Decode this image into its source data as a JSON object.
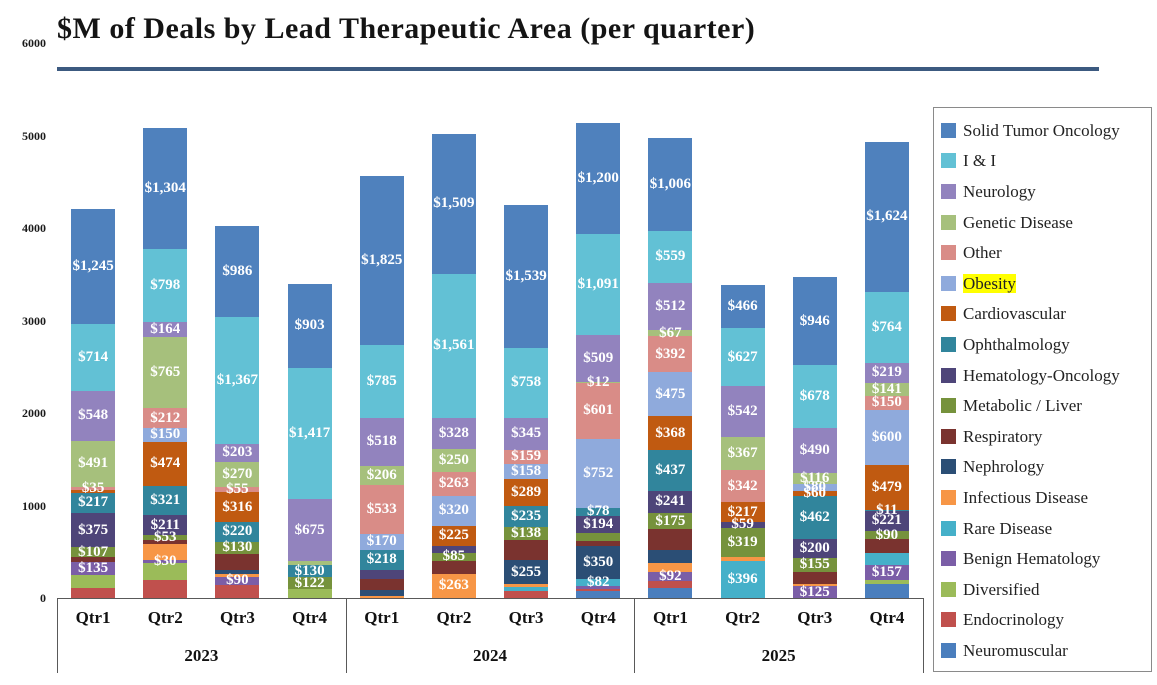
{
  "title": "$M of Deals by Lead Therapeutic Area (per quarter)",
  "accent_rule_color": "#3C5A80",
  "y_axis": {
    "ticks": [
      6000,
      5000,
      4000,
      3000,
      2000,
      1000,
      0
    ],
    "max": 6000
  },
  "x_axis": {
    "years": [
      "2023",
      "2024",
      "2025"
    ],
    "quarters": [
      "Qtr1",
      "Qtr2",
      "Qtr3",
      "Qtr4"
    ]
  },
  "legend": [
    {
      "key": "sto",
      "label": "Solid Tumor Oncology",
      "color": "#4F81BD",
      "highlighted": false
    },
    {
      "key": "ii",
      "label": "I & I",
      "color": "#62C1D5",
      "highlighted": false
    },
    {
      "key": "neuro",
      "label": "Neurology",
      "color": "#9283BE",
      "highlighted": false
    },
    {
      "key": "genetic",
      "label": "Genetic Disease",
      "color": "#A6C07C",
      "highlighted": false
    },
    {
      "key": "other",
      "label": "Other",
      "color": "#D98C87",
      "highlighted": false
    },
    {
      "key": "obesity",
      "label": "Obesity",
      "color": "#8FAADC",
      "highlighted": true,
      "highlight_color": "#FFFF00"
    },
    {
      "key": "cardio",
      "label": "Cardiovascular",
      "color": "#C05A11",
      "highlighted": false
    },
    {
      "key": "ophthal",
      "label": "Ophthalmology",
      "color": "#31859C",
      "highlighted": false
    },
    {
      "key": "hemonc",
      "label": "Hematology-Oncology",
      "color": "#4E4579",
      "highlighted": false
    },
    {
      "key": "metabolic",
      "label": "Metabolic / Liver",
      "color": "#76923C",
      "highlighted": false
    },
    {
      "key": "resp",
      "label": "Respiratory",
      "color": "#7A332F",
      "highlighted": false
    },
    {
      "key": "nephro",
      "label": "Nephrology",
      "color": "#2B4E75",
      "highlighted": false
    },
    {
      "key": "infect",
      "label": "Infectious Disease",
      "color": "#F79646",
      "highlighted": false
    },
    {
      "key": "rare",
      "label": "Rare Disease",
      "color": "#45B0C9",
      "highlighted": false
    },
    {
      "key": "benign",
      "label": "Benign Hematology",
      "color": "#7B5EA7",
      "highlighted": false
    },
    {
      "key": "divers",
      "label": "Diversified",
      "color": "#9BBB59",
      "highlighted": false
    },
    {
      "key": "endo",
      "label": "Endocrinology",
      "color": "#C0504D",
      "highlighted": false
    },
    {
      "key": "neuromusc",
      "label": "Neuromuscular",
      "color": "#4A7EBD",
      "highlighted": false
    }
  ],
  "chart_data": {
    "type": "bar",
    "stacked": true,
    "unit": "$M",
    "title": "$M of Deals by Lead Therapeutic Area (per quarter)",
    "ylim": [
      0,
      6000
    ],
    "grid": false,
    "legend_position": "right",
    "segments_order": "top-to-bottom",
    "bars": [
      {
        "year": "2023",
        "quarter": "Qtr1",
        "segments": [
          {
            "a": "sto",
            "v": 1245,
            "l": "$1,245"
          },
          {
            "a": "ii",
            "v": 714,
            "l": "$714"
          },
          {
            "a": "neuro",
            "v": 548,
            "l": "$548"
          },
          {
            "a": "genetic",
            "v": 491,
            "l": "$491"
          },
          {
            "a": "other",
            "v": 35,
            "l": "$35"
          },
          {
            "a": "cardio",
            "v": 30,
            "l": null
          },
          {
            "a": "ophthal",
            "v": 217,
            "l": "$217"
          },
          {
            "a": "hemonc",
            "v": 375,
            "l": "$375"
          },
          {
            "a": "metabolic",
            "v": 107,
            "l": "$107"
          },
          {
            "a": "resp",
            "v": 55,
            "l": null
          },
          {
            "a": "benign",
            "v": 135,
            "l": "$135"
          },
          {
            "a": "divers",
            "v": 140,
            "l": null
          },
          {
            "a": "endo",
            "v": 110,
            "l": null
          }
        ]
      },
      {
        "year": "2023",
        "quarter": "Qtr2",
        "segments": [
          {
            "a": "sto",
            "v": 1304,
            "l": "$1,304"
          },
          {
            "a": "ii",
            "v": 798,
            "l": "$798"
          },
          {
            "a": "neuro",
            "v": 164,
            "l": "$164"
          },
          {
            "a": "genetic",
            "v": 765,
            "l": "$765"
          },
          {
            "a": "other",
            "v": 212,
            "l": "$212"
          },
          {
            "a": "obesity",
            "v": 150,
            "l": "$150"
          },
          {
            "a": "cardio",
            "v": 474,
            "l": "$474"
          },
          {
            "a": "ophthal",
            "v": 321,
            "l": "$321"
          },
          {
            "a": "hemonc",
            "v": 211,
            "l": "$211"
          },
          {
            "a": "metabolic",
            "v": 53,
            "l": "$53"
          },
          {
            "a": "resp",
            "v": 45,
            "l": null
          },
          {
            "a": "infect",
            "v": 180,
            "l": null
          },
          {
            "a": "benign",
            "v": 30,
            "l": "$30"
          },
          {
            "a": "divers",
            "v": 185,
            "l": null
          },
          {
            "a": "endo",
            "v": 190,
            "l": null
          }
        ]
      },
      {
        "year": "2023",
        "quarter": "Qtr3",
        "segments": [
          {
            "a": "sto",
            "v": 986,
            "l": "$986"
          },
          {
            "a": "ii",
            "v": 1367,
            "l": "$1,367"
          },
          {
            "a": "neuro",
            "v": 203,
            "l": "$203"
          },
          {
            "a": "genetic",
            "v": 270,
            "l": "$270"
          },
          {
            "a": "other",
            "v": 55,
            "l": "$55"
          },
          {
            "a": "cardio",
            "v": 316,
            "l": "$316"
          },
          {
            "a": "ophthal",
            "v": 220,
            "l": "$220"
          },
          {
            "a": "metabolic",
            "v": 130,
            "l": "$130"
          },
          {
            "a": "resp",
            "v": 170,
            "l": null
          },
          {
            "a": "nephro",
            "v": 45,
            "l": null
          },
          {
            "a": "infect",
            "v": 30,
            "l": null
          },
          {
            "a": "benign",
            "v": 90,
            "l": "$90"
          },
          {
            "a": "endo",
            "v": 140,
            "l": null
          }
        ]
      },
      {
        "year": "2023",
        "quarter": "Qtr4",
        "segments": [
          {
            "a": "sto",
            "v": 903,
            "l": "$903"
          },
          {
            "a": "ii",
            "v": 1417,
            "l": "$1,417"
          },
          {
            "a": "neuro",
            "v": 675,
            "l": "$675"
          },
          {
            "a": "genetic",
            "v": 45,
            "l": null
          },
          {
            "a": "ophthal",
            "v": 130,
            "l": "$130"
          },
          {
            "a": "metabolic",
            "v": 122,
            "l": "$122"
          },
          {
            "a": "divers",
            "v": 100,
            "l": null
          }
        ]
      },
      {
        "year": "2024",
        "quarter": "Qtr1",
        "segments": [
          {
            "a": "sto",
            "v": 1825,
            "l": "$1,825"
          },
          {
            "a": "ii",
            "v": 785,
            "l": "$785"
          },
          {
            "a": "neuro",
            "v": 518,
            "l": "$518"
          },
          {
            "a": "genetic",
            "v": 206,
            "l": "$206"
          },
          {
            "a": "other",
            "v": 533,
            "l": "$533"
          },
          {
            "a": "obesity",
            "v": 170,
            "l": "$170"
          },
          {
            "a": "ophthal",
            "v": 218,
            "l": "$218"
          },
          {
            "a": "hemonc",
            "v": 95,
            "l": null
          },
          {
            "a": "resp",
            "v": 120,
            "l": null
          },
          {
            "a": "nephro",
            "v": 65,
            "l": null
          },
          {
            "a": "infect",
            "v": 25,
            "l": null
          }
        ]
      },
      {
        "year": "2024",
        "quarter": "Qtr2",
        "segments": [
          {
            "a": "sto",
            "v": 1509,
            "l": "$1,509"
          },
          {
            "a": "ii",
            "v": 1561,
            "l": "$1,561"
          },
          {
            "a": "neuro",
            "v": 328,
            "l": "$328"
          },
          {
            "a": "genetic",
            "v": 250,
            "l": "$250"
          },
          {
            "a": "other",
            "v": 263,
            "l": "$263"
          },
          {
            "a": "obesity",
            "v": 320,
            "l": "$320"
          },
          {
            "a": "cardio",
            "v": 225,
            "l": "$225"
          },
          {
            "a": "hemonc",
            "v": 70,
            "l": null
          },
          {
            "a": "metabolic",
            "v": 85,
            "l": "$85"
          },
          {
            "a": "resp",
            "v": 140,
            "l": null
          },
          {
            "a": "infect",
            "v": 263,
            "l": "$263"
          }
        ]
      },
      {
        "year": "2024",
        "quarter": "Qtr3",
        "segments": [
          {
            "a": "sto",
            "v": 1539,
            "l": "$1,539"
          },
          {
            "a": "ii",
            "v": 758,
            "l": "$758"
          },
          {
            "a": "neuro",
            "v": 345,
            "l": "$345"
          },
          {
            "a": "other",
            "v": 159,
            "l": "$159"
          },
          {
            "a": "obesity",
            "v": 158,
            "l": "$158"
          },
          {
            "a": "cardio",
            "v": 289,
            "l": "$289"
          },
          {
            "a": "ophthal",
            "v": 235,
            "l": "$235"
          },
          {
            "a": "metabolic",
            "v": 138,
            "l": "$138"
          },
          {
            "a": "resp",
            "v": 220,
            "l": null
          },
          {
            "a": "nephro",
            "v": 255,
            "l": "$255"
          },
          {
            "a": "infect",
            "v": 35,
            "l": null
          },
          {
            "a": "rare",
            "v": 45,
            "l": null
          },
          {
            "a": "endo",
            "v": 70,
            "l": null
          }
        ]
      },
      {
        "year": "2024",
        "quarter": "Qtr4",
        "segments": [
          {
            "a": "sto",
            "v": 1200,
            "l": "$1,200"
          },
          {
            "a": "ii",
            "v": 1091,
            "l": "$1,091"
          },
          {
            "a": "neuro",
            "v": 509,
            "l": "$509"
          },
          {
            "a": "genetic",
            "v": 12,
            "l": "$12"
          },
          {
            "a": "other",
            "v": 601,
            "l": "$601"
          },
          {
            "a": "obesity",
            "v": 752,
            "l": "$752"
          },
          {
            "a": "ophthal",
            "v": 78,
            "l": "$78"
          },
          {
            "a": "hemonc",
            "v": 194,
            "l": "$194"
          },
          {
            "a": "metabolic",
            "v": 80,
            "l": null
          },
          {
            "a": "resp",
            "v": 60,
            "l": null
          },
          {
            "a": "nephro",
            "v": 350,
            "l": "$350"
          },
          {
            "a": "rare",
            "v": 82,
            "l": "$82"
          },
          {
            "a": "benign",
            "v": 25,
            "l": null
          },
          {
            "a": "endo",
            "v": 30,
            "l": null
          },
          {
            "a": "neuromusc",
            "v": 70,
            "l": null
          }
        ]
      },
      {
        "year": "2025",
        "quarter": "Qtr1",
        "segments": [
          {
            "a": "sto",
            "v": 1006,
            "l": "$1,006"
          },
          {
            "a": "ii",
            "v": 559,
            "l": "$559"
          },
          {
            "a": "neuro",
            "v": 512,
            "l": "$512"
          },
          {
            "a": "genetic",
            "v": 67,
            "l": "$67"
          },
          {
            "a": "other",
            "v": 392,
            "l": "$392"
          },
          {
            "a": "obesity",
            "v": 475,
            "l": "$475"
          },
          {
            "a": "cardio",
            "v": 368,
            "l": "$368"
          },
          {
            "a": "ophthal",
            "v": 437,
            "l": "$437"
          },
          {
            "a": "hemonc",
            "v": 241,
            "l": "$241"
          },
          {
            "a": "metabolic",
            "v": 175,
            "l": "$175"
          },
          {
            "a": "resp",
            "v": 220,
            "l": null
          },
          {
            "a": "nephro",
            "v": 140,
            "l": null
          },
          {
            "a": "infect",
            "v": 105,
            "l": null
          },
          {
            "a": "benign",
            "v": 92,
            "l": "$92"
          },
          {
            "a": "endo",
            "v": 75,
            "l": null
          },
          {
            "a": "neuromusc",
            "v": 110,
            "l": null
          }
        ]
      },
      {
        "year": "2025",
        "quarter": "Qtr2",
        "segments": [
          {
            "a": "sto",
            "v": 466,
            "l": "$466"
          },
          {
            "a": "ii",
            "v": 627,
            "l": "$627"
          },
          {
            "a": "neuro",
            "v": 542,
            "l": "$542"
          },
          {
            "a": "genetic",
            "v": 367,
            "l": "$367"
          },
          {
            "a": "other",
            "v": 342,
            "l": "$342"
          },
          {
            "a": "cardio",
            "v": 217,
            "l": "$217"
          },
          {
            "a": "hemonc",
            "v": 59,
            "l": "$59"
          },
          {
            "a": "metabolic",
            "v": 319,
            "l": "$319"
          },
          {
            "a": "infect",
            "v": 45,
            "l": null
          },
          {
            "a": "rare",
            "v": 396,
            "l": "$396"
          }
        ]
      },
      {
        "year": "2025",
        "quarter": "Qtr3",
        "segments": [
          {
            "a": "sto",
            "v": 946,
            "l": "$946"
          },
          {
            "a": "ii",
            "v": 678,
            "l": "$678"
          },
          {
            "a": "neuro",
            "v": 490,
            "l": "$490"
          },
          {
            "a": "genetic",
            "v": 116,
            "l": "$116"
          },
          {
            "a": "obesity",
            "v": 80,
            "l": "$80"
          },
          {
            "a": "cardio",
            "v": 60,
            "l": "$60"
          },
          {
            "a": "ophthal",
            "v": 462,
            "l": "$462"
          },
          {
            "a": "hemonc",
            "v": 200,
            "l": "$200"
          },
          {
            "a": "metabolic",
            "v": 155,
            "l": "$155"
          },
          {
            "a": "resp",
            "v": 130,
            "l": null
          },
          {
            "a": "infect",
            "v": 25,
            "l": null
          },
          {
            "a": "benign",
            "v": 125,
            "l": "$125"
          }
        ]
      },
      {
        "year": "2025",
        "quarter": "Qtr4",
        "segments": [
          {
            "a": "sto",
            "v": 1624,
            "l": "$1,624"
          },
          {
            "a": "ii",
            "v": 764,
            "l": "$764"
          },
          {
            "a": "neuro",
            "v": 219,
            "l": "$219"
          },
          {
            "a": "genetic",
            "v": 141,
            "l": "$141"
          },
          {
            "a": "other",
            "v": 150,
            "l": "$150"
          },
          {
            "a": "obesity",
            "v": 600,
            "l": "$600"
          },
          {
            "a": "cardio",
            "v": 479,
            "l": "$479"
          },
          {
            "a": "ophthal",
            "v": 11,
            "l": "$11"
          },
          {
            "a": "hemonc",
            "v": 221,
            "l": "$221"
          },
          {
            "a": "metabolic",
            "v": 90,
            "l": "$90"
          },
          {
            "a": "resp",
            "v": 150,
            "l": null
          },
          {
            "a": "rare",
            "v": 130,
            "l": null
          },
          {
            "a": "benign",
            "v": 157,
            "l": "$157"
          },
          {
            "a": "divers",
            "v": 45,
            "l": null
          },
          {
            "a": "neuromusc",
            "v": 150,
            "l": null
          }
        ]
      }
    ]
  }
}
